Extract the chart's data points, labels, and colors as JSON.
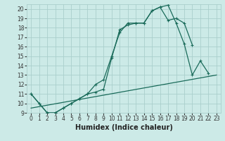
{
  "title": "",
  "xlabel": "Humidex (Indice chaleur)",
  "bg_color": "#cceae7",
  "grid_color": "#aacfcc",
  "line_color": "#1a6b5a",
  "xlim": [
    -0.5,
    23.5
  ],
  "ylim": [
    9,
    20.5
  ],
  "yticks": [
    9,
    10,
    11,
    12,
    13,
    14,
    15,
    16,
    17,
    18,
    19,
    20
  ],
  "xticks": [
    0,
    1,
    2,
    3,
    4,
    5,
    6,
    7,
    8,
    9,
    10,
    11,
    12,
    13,
    14,
    15,
    16,
    17,
    18,
    19,
    20,
    21,
    22,
    23
  ],
  "line1_x": [
    0,
    1,
    2,
    3,
    4,
    5,
    6,
    7,
    8,
    9,
    10,
    11,
    12,
    13,
    14,
    15,
    16,
    17,
    18,
    19,
    20,
    21,
    22
  ],
  "line1_y": [
    11.0,
    10.0,
    9.0,
    9.0,
    9.5,
    10.0,
    10.5,
    11.0,
    11.2,
    11.5,
    14.8,
    17.8,
    18.3,
    18.5,
    18.5,
    19.8,
    20.2,
    20.4,
    18.5,
    16.3,
    13.0,
    14.5,
    13.2
  ],
  "line2_x": [
    0,
    1,
    2,
    3,
    4,
    5,
    6,
    7,
    8,
    9,
    10,
    11,
    12,
    13,
    14,
    15,
    16,
    17,
    18,
    19,
    20
  ],
  "line2_y": [
    11.0,
    10.0,
    9.0,
    9.0,
    9.5,
    10.0,
    10.5,
    11.0,
    12.0,
    12.5,
    15.0,
    17.5,
    18.5,
    18.5,
    18.5,
    19.8,
    20.2,
    18.8,
    19.0,
    18.5,
    16.2
  ],
  "line3_x": [
    0,
    23
  ],
  "line3_y": [
    9.5,
    13.0
  ],
  "xlabel_fontsize": 7,
  "tick_fontsize": 5.5,
  "linewidth": 0.9,
  "markersize": 3.0
}
